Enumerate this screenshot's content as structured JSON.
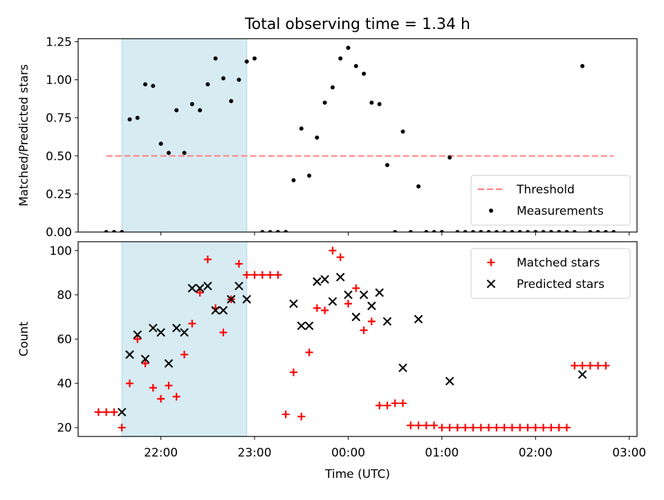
{
  "title": "Total observing time = 1.34 h",
  "chart_data": [
    {
      "type": "scatter",
      "title": "Total observing time = 1.34 h",
      "xlabel": "",
      "ylabel": "Matched/Predicted stars",
      "xlim": [
        "21:07",
        "03:05"
      ],
      "ylim": [
        0,
        1.27
      ],
      "yticks": [
        "0.00",
        "0.25",
        "0.50",
        "0.75",
        "1.00",
        "1.25"
      ],
      "shaded_region": {
        "from": "21:35",
        "to": "22:55",
        "color": "#add8e6"
      },
      "legend_position": "lower right",
      "series": [
        {
          "name": "Threshold",
          "style": "dashed-line",
          "color": "#ff7f7f",
          "x": [
            "21:25",
            "02:50"
          ],
          "y": [
            0.5,
            0.5
          ]
        },
        {
          "name": "Measurements",
          "style": "dot",
          "color": "#000000",
          "points": [
            [
              "21:25",
              0
            ],
            [
              "21:30",
              0
            ],
            [
              "21:35",
              0
            ],
            [
              "21:40",
              0.74
            ],
            [
              "21:45",
              0.75
            ],
            [
              "21:50",
              0.97
            ],
            [
              "21:55",
              0.96
            ],
            [
              "22:00",
              0.58
            ],
            [
              "22:05",
              0.52
            ],
            [
              "22:10",
              0.8
            ],
            [
              "22:15",
              0.52
            ],
            [
              "22:20",
              0.84
            ],
            [
              "22:25",
              0.8
            ],
            [
              "22:30",
              0.97
            ],
            [
              "22:35",
              1.14
            ],
            [
              "22:40",
              1.01
            ],
            [
              "22:45",
              0.86
            ],
            [
              "22:50",
              1.0
            ],
            [
              "22:55",
              1.12
            ],
            [
              "23:00",
              1.14
            ],
            [
              "23:05",
              0
            ],
            [
              "23:10",
              0
            ],
            [
              "23:15",
              0
            ],
            [
              "23:20",
              0
            ],
            [
              "23:25",
              0.34
            ],
            [
              "23:30",
              0.68
            ],
            [
              "23:35",
              0.37
            ],
            [
              "23:40",
              0.62
            ],
            [
              "23:45",
              0.85
            ],
            [
              "23:50",
              0.95
            ],
            [
              "23:55",
              1.14
            ],
            [
              "00:00",
              1.21
            ],
            [
              "00:05",
              1.09
            ],
            [
              "00:10",
              1.04
            ],
            [
              "00:15",
              0.85
            ],
            [
              "00:20",
              0.84
            ],
            [
              "00:25",
              0.44
            ],
            [
              "00:30",
              0
            ],
            [
              "00:35",
              0.66
            ],
            [
              "00:40",
              0
            ],
            [
              "00:45",
              0.3
            ],
            [
              "00:50",
              0
            ],
            [
              "00:55",
              0
            ],
            [
              "01:00",
              0
            ],
            [
              "01:05",
              0.49
            ],
            [
              "01:10",
              0
            ],
            [
              "01:15",
              0
            ],
            [
              "01:20",
              0
            ],
            [
              "01:25",
              0
            ],
            [
              "01:30",
              0
            ],
            [
              "01:35",
              0
            ],
            [
              "01:40",
              0
            ],
            [
              "01:45",
              0
            ],
            [
              "01:50",
              0
            ],
            [
              "01:55",
              0
            ],
            [
              "02:00",
              0
            ],
            [
              "02:05",
              0
            ],
            [
              "02:10",
              0
            ],
            [
              "02:15",
              0
            ],
            [
              "02:20",
              0
            ],
            [
              "02:25",
              0
            ],
            [
              "02:30",
              1.09
            ],
            [
              "02:35",
              0
            ],
            [
              "02:40",
              0
            ],
            [
              "02:45",
              0
            ],
            [
              "02:50",
              0
            ]
          ]
        }
      ]
    },
    {
      "type": "scatter",
      "xlabel": "Time (UTC)",
      "ylabel": "Count",
      "xlim": [
        "21:07",
        "03:05"
      ],
      "ylim": [
        16,
        104
      ],
      "xticks": [
        "22:00",
        "23:00",
        "00:00",
        "01:00",
        "02:00",
        "03:00"
      ],
      "yticks": [
        "20",
        "40",
        "60",
        "80",
        "100"
      ],
      "shaded_region": {
        "from": "21:35",
        "to": "22:55",
        "color": "#add8e6"
      },
      "legend_position": "upper right",
      "series": [
        {
          "name": "Matched stars",
          "marker": "plus",
          "color": "#ff0000",
          "points": [
            [
              "21:20",
              27
            ],
            [
              "21:25",
              27
            ],
            [
              "21:30",
              27
            ],
            [
              "21:35",
              20
            ],
            [
              "21:40",
              40
            ],
            [
              "21:45",
              60
            ],
            [
              "21:50",
              49
            ],
            [
              "21:55",
              38
            ],
            [
              "22:00",
              33
            ],
            [
              "22:05",
              39
            ],
            [
              "22:10",
              34
            ],
            [
              "22:15",
              53
            ],
            [
              "22:20",
              67
            ],
            [
              "22:25",
              81
            ],
            [
              "22:30",
              96
            ],
            [
              "22:35",
              74
            ],
            [
              "22:40",
              63
            ],
            [
              "22:45",
              78
            ],
            [
              "22:50",
              94
            ],
            [
              "22:55",
              89
            ],
            [
              "23:00",
              89
            ],
            [
              "23:05",
              89
            ],
            [
              "23:10",
              89
            ],
            [
              "23:15",
              89
            ],
            [
              "23:20",
              26
            ],
            [
              "23:25",
              45
            ],
            [
              "23:30",
              25
            ],
            [
              "23:35",
              54
            ],
            [
              "23:40",
              74
            ],
            [
              "23:45",
              73
            ],
            [
              "23:50",
              100
            ],
            [
              "23:55",
              97
            ],
            [
              "00:00",
              76
            ],
            [
              "00:05",
              83
            ],
            [
              "00:10",
              64
            ],
            [
              "00:15",
              68
            ],
            [
              "00:20",
              30
            ],
            [
              "00:25",
              30
            ],
            [
              "00:30",
              31
            ],
            [
              "00:35",
              31
            ],
            [
              "00:40",
              21
            ],
            [
              "00:45",
              21
            ],
            [
              "00:50",
              21
            ],
            [
              "00:55",
              21
            ],
            [
              "01:00",
              20
            ],
            [
              "01:05",
              20
            ],
            [
              "01:10",
              20
            ],
            [
              "01:15",
              20
            ],
            [
              "01:20",
              20
            ],
            [
              "01:25",
              20
            ],
            [
              "01:30",
              20
            ],
            [
              "01:35",
              20
            ],
            [
              "01:40",
              20
            ],
            [
              "01:45",
              20
            ],
            [
              "01:50",
              20
            ],
            [
              "01:55",
              20
            ],
            [
              "02:00",
              20
            ],
            [
              "02:05",
              20
            ],
            [
              "02:10",
              20
            ],
            [
              "02:15",
              20
            ],
            [
              "02:20",
              20
            ],
            [
              "02:25",
              48
            ],
            [
              "02:30",
              48
            ],
            [
              "02:35",
              48
            ],
            [
              "02:40",
              48
            ],
            [
              "02:45",
              48
            ]
          ]
        },
        {
          "name": "Predicted stars",
          "marker": "x",
          "color": "#000000",
          "points": [
            [
              "21:35",
              27
            ],
            [
              "21:40",
              53
            ],
            [
              "21:45",
              62
            ],
            [
              "21:50",
              51
            ],
            [
              "21:55",
              65
            ],
            [
              "22:00",
              63
            ],
            [
              "22:05",
              49
            ],
            [
              "22:10",
              65
            ],
            [
              "22:15",
              63
            ],
            [
              "22:20",
              83
            ],
            [
              "22:25",
              83
            ],
            [
              "22:30",
              84
            ],
            [
              "22:35",
              73
            ],
            [
              "22:40",
              73
            ],
            [
              "22:45",
              78
            ],
            [
              "22:50",
              84
            ],
            [
              "22:55",
              78
            ],
            [
              "23:25",
              76
            ],
            [
              "23:30",
              66
            ],
            [
              "23:35",
              66
            ],
            [
              "23:40",
              86
            ],
            [
              "23:45",
              87
            ],
            [
              "23:50",
              77
            ],
            [
              "23:55",
              88
            ],
            [
              "00:00",
              80
            ],
            [
              "00:05",
              70
            ],
            [
              "00:10",
              80
            ],
            [
              "00:15",
              75
            ],
            [
              "00:20",
              81
            ],
            [
              "00:25",
              68
            ],
            [
              "00:35",
              47
            ],
            [
              "00:45",
              69
            ],
            [
              "01:05",
              41
            ],
            [
              "02:30",
              44
            ]
          ]
        }
      ]
    }
  ]
}
